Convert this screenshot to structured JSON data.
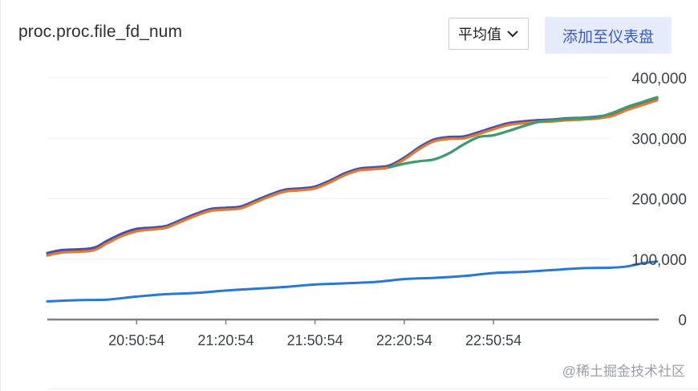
{
  "header": {
    "title": "proc.proc.file_fd_num",
    "aggregation_label": "平均值",
    "add_button_label": "添加至仪表盘"
  },
  "watermark": "@稀土掘金技术社区",
  "chart_data": {
    "type": "line",
    "title": "proc.proc.file_fd_num",
    "x_tick_labels": [
      "20:50:54",
      "21:20:54",
      "21:50:54",
      "22:20:54",
      "22:50:54"
    ],
    "x_tick_minutes": [
      30,
      60,
      90,
      120,
      150
    ],
    "y_tick_labels": [
      "0",
      "100,000",
      "200,000",
      "300,000",
      "400,000"
    ],
    "ylim": [
      0,
      400000
    ],
    "xlim_minutes": [
      0,
      205
    ],
    "grid": true,
    "series": [
      {
        "color": "#4a4fa8",
        "minutes": [
          0,
          5,
          15,
          20,
          25,
          30,
          35,
          40,
          45,
          50,
          55,
          60,
          65,
          70,
          75,
          80,
          85,
          90,
          95,
          100,
          105,
          110,
          115,
          120,
          125,
          130,
          135,
          140,
          145,
          150,
          155,
          160,
          165,
          170,
          175,
          180,
          185,
          190,
          195,
          200,
          205
        ],
        "values": [
          110000,
          115000,
          118000,
          130000,
          142000,
          150000,
          152000,
          155000,
          165000,
          175000,
          183000,
          185000,
          187000,
          197000,
          207000,
          215000,
          217000,
          220000,
          230000,
          242000,
          250000,
          252000,
          255000,
          268000,
          285000,
          298000,
          302000,
          303000,
          310000,
          318000,
          325000,
          328000,
          330000,
          331000,
          333000,
          334000,
          336000,
          340000,
          350000,
          358000,
          366000
        ]
      },
      {
        "color": "#e07b33",
        "minutes": [
          0,
          5,
          15,
          20,
          25,
          30,
          35,
          40,
          45,
          50,
          55,
          60,
          65,
          70,
          75,
          80,
          85,
          90,
          95,
          100,
          105,
          110,
          115,
          120,
          125,
          130,
          135,
          140,
          145,
          150,
          155,
          160,
          165,
          170,
          175,
          180,
          185,
          190,
          195,
          200,
          205
        ],
        "values": [
          106000,
          111000,
          114000,
          126000,
          138000,
          146000,
          149000,
          152000,
          162000,
          172000,
          180000,
          182000,
          184000,
          194000,
          204000,
          212000,
          214000,
          217000,
          227000,
          239000,
          247000,
          249000,
          252000,
          265000,
          282000,
          295000,
          299000,
          300000,
          307000,
          315000,
          322000,
          325000,
          327000,
          328000,
          330000,
          331000,
          333000,
          337000,
          347000,
          355000,
          363000
        ]
      },
      {
        "color": "#3f9a6e",
        "minutes": [
          115,
          120,
          125,
          130,
          135,
          140,
          145,
          150,
          155,
          160,
          165,
          170,
          175,
          180,
          185,
          190,
          195,
          200,
          205
        ],
        "values": [
          252000,
          258000,
          262000,
          265000,
          275000,
          290000,
          302000,
          305000,
          312000,
          320000,
          327000,
          330000,
          332000,
          333000,
          335000,
          342000,
          352000,
          360000,
          368000
        ]
      },
      {
        "color": "#2878d6",
        "minutes": [
          0,
          10,
          20,
          30,
          40,
          50,
          60,
          70,
          80,
          90,
          100,
          110,
          120,
          130,
          140,
          150,
          160,
          170,
          180,
          190,
          195,
          200,
          205
        ],
        "values": [
          30000,
          32000,
          33000,
          38000,
          42000,
          44000,
          48000,
          51000,
          54000,
          58000,
          60000,
          62000,
          67000,
          69000,
          72000,
          77000,
          79000,
          82000,
          85000,
          86000,
          88000,
          93000,
          96000
        ]
      }
    ]
  }
}
